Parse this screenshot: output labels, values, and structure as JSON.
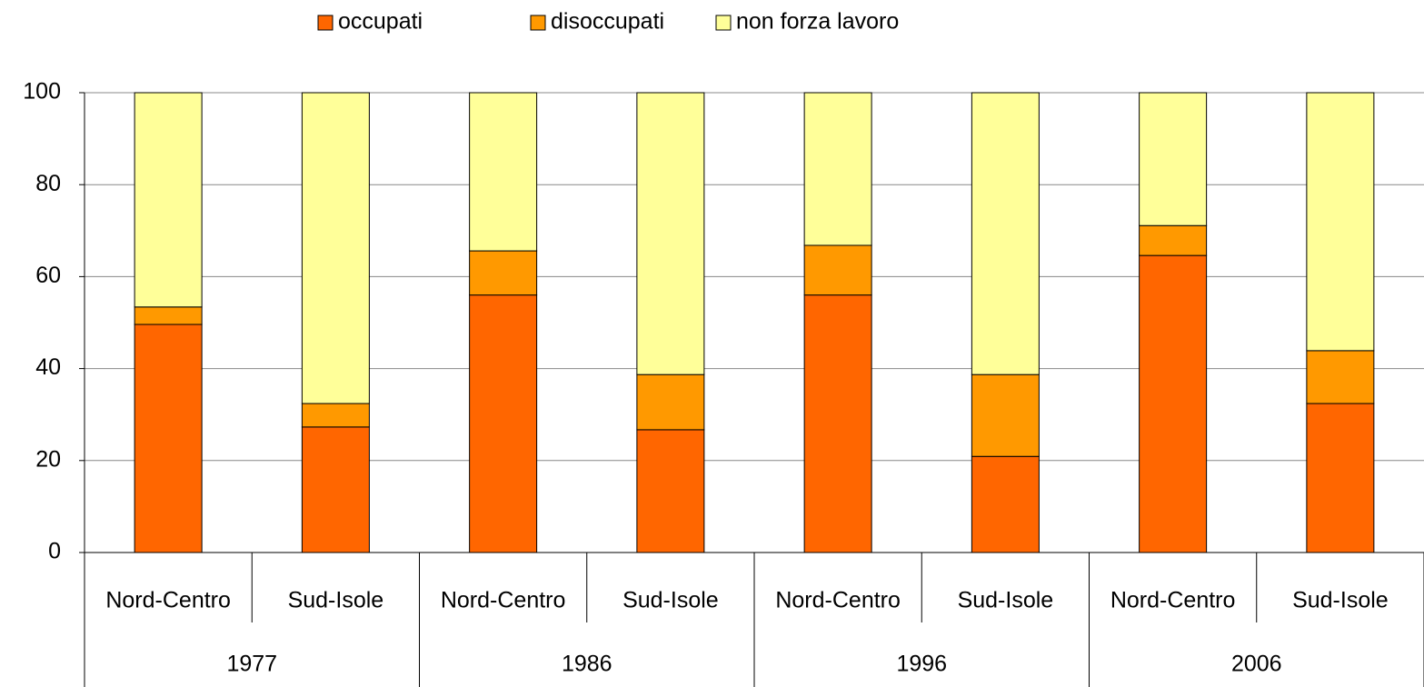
{
  "chart_data": {
    "type": "stacked_bar",
    "categories": [
      "Nord-Centro",
      "Sud-Isole",
      "Nord-Centro",
      "Sud-Isole",
      "Nord-Centro",
      "Sud-Isole",
      "Nord-Centro",
      "Sud-Isole"
    ],
    "groups": [
      "1977",
      "1986",
      "1996",
      "2006"
    ],
    "series": [
      {
        "name": "occupati",
        "color": "#ff6600",
        "values": [
          49.6,
          27.3,
          56,
          26.7,
          56,
          20.9,
          64.6,
          32.4
        ]
      },
      {
        "name": "disoccupati",
        "color": "#ff9900",
        "values": [
          3.8,
          5.1,
          9.6,
          12,
          10.8,
          17.8,
          6.5,
          11.5
        ]
      },
      {
        "name": "non forza lavoro",
        "color": "#ffff99",
        "values": [
          46.6,
          67.6,
          34.4,
          61.3,
          33.2,
          61.3,
          28.9,
          56.1
        ]
      }
    ],
    "ylim": [
      0,
      100
    ],
    "yticks": [
      0,
      20,
      40,
      60,
      80,
      100
    ],
    "grid": true,
    "legend": "top"
  }
}
